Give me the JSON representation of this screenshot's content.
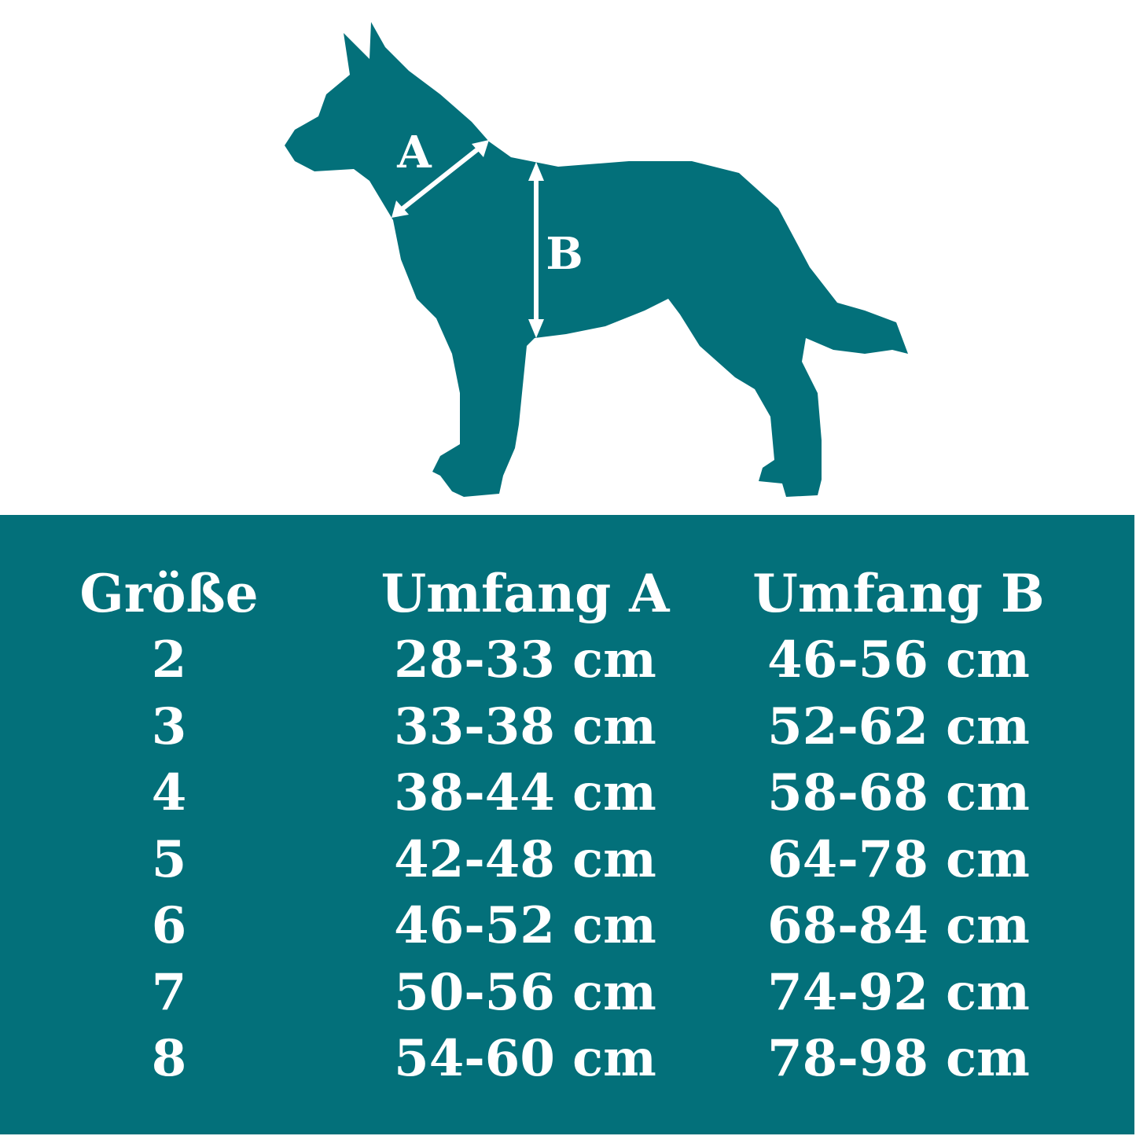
{
  "colors": {
    "brand": "#03707a",
    "background": "#ffffff",
    "text": "#ffffff"
  },
  "diagram": {
    "label_a": "A",
    "label_b": "B",
    "icon": "dog-silhouette"
  },
  "table": {
    "headers": [
      "Größe",
      "Umfang A",
      "Umfang B"
    ],
    "rows": [
      [
        "2",
        "28-33 cm",
        "46-56 cm"
      ],
      [
        "3",
        "33-38 cm",
        "52-62 cm"
      ],
      [
        "4",
        "38-44 cm",
        "58-68 cm"
      ],
      [
        "5",
        "42-48 cm",
        "64-78 cm"
      ],
      [
        "6",
        "46-52 cm",
        "68-84 cm"
      ],
      [
        "7",
        "50-56 cm",
        "74-92 cm"
      ],
      [
        "8",
        "54-60 cm",
        "78-98 cm"
      ]
    ]
  }
}
